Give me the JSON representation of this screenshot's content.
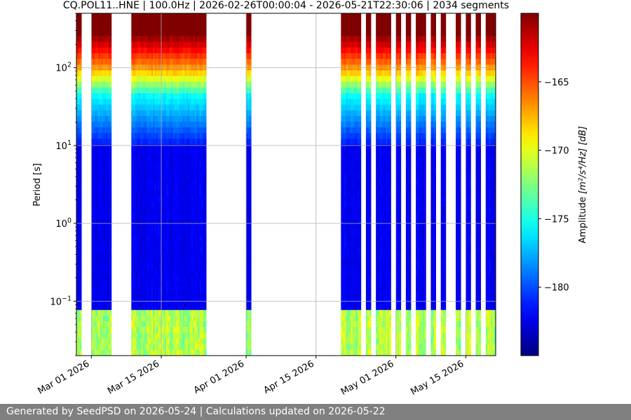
{
  "chart_data": {
    "type": "heatmap",
    "title": "CQ.POL11..HNE | 100.0Hz | 2026-02-26T00:00:04 - 2026-05-21T22:30:06 | 2034 segments",
    "xlabel": "",
    "ylabel": "Period [s]",
    "x_start": "2026-02-26",
    "x_end": "2026-05-21",
    "x_tick_labels": [
      "Mar 01 2026",
      "Mar 15 2026",
      "Apr 01 2026",
      "Apr 15 2026",
      "May 01 2026",
      "May 15 2026"
    ],
    "x_tick_dates": [
      "2026-03-01",
      "2026-03-15",
      "2026-04-01",
      "2026-04-15",
      "2026-05-01",
      "2026-05-15"
    ],
    "y_scale": "log",
    "y_inverted": true,
    "ylim": [
      0.02,
      500
    ],
    "y_tick_labels": [
      "10^-1",
      "10^0",
      "10^1",
      "10^2"
    ],
    "y_tick_values": [
      0.1,
      1,
      10,
      100
    ],
    "grid": true,
    "colormap": "jet",
    "colorbar": {
      "label": "Amplitude [m²/s⁴/Hz] [dB]",
      "range": [
        -185,
        -160
      ],
      "ticks": [
        -165,
        -170,
        -175,
        -180
      ],
      "tick_labels": [
        "−165",
        "−170",
        "−175",
        "−180"
      ]
    },
    "data_segments": [
      [
        "2026-02-26",
        "2026-02-27"
      ],
      [
        "2026-02-29",
        "2026-03-05"
      ],
      [
        "2026-03-09",
        "2026-03-24"
      ],
      [
        "2026-04-01",
        "2026-04-02"
      ],
      [
        "2026-04-20",
        "2026-04-24"
      ],
      [
        "2026-04-25",
        "2026-04-26"
      ],
      [
        "2026-04-27",
        "2026-04-30"
      ],
      [
        "2026-05-01",
        "2026-05-02"
      ],
      [
        "2026-05-03",
        "2026-05-04"
      ],
      [
        "2026-05-05",
        "2026-05-07"
      ],
      [
        "2026-05-08",
        "2026-05-09"
      ],
      [
        "2026-05-10",
        "2026-05-11"
      ],
      [
        "2026-05-13",
        "2026-05-14"
      ],
      [
        "2026-05-15",
        "2026-05-16"
      ],
      [
        "2026-05-17",
        "2026-05-18"
      ],
      [
        "2026-05-19",
        "2026-05-21"
      ]
    ]
  },
  "footer": {
    "text": "Generated by SeedPSD on 2026-05-24 | Calculations updated on 2026-05-22"
  }
}
